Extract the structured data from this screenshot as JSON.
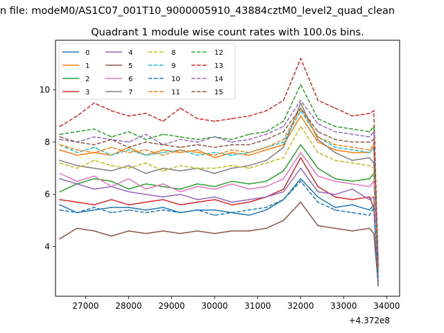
{
  "figure": {
    "suptitle": "n file: modeM0/AS1C07_001T10_9000005910_43884cztM0_level2_quad_clean"
  },
  "chart_data": {
    "type": "line",
    "title": "Quadrant 1 module wise count rates with 100.0s bins.",
    "xlabel": "",
    "ylabel": "",
    "x_offset_label": "+4.372e8",
    "xlim": [
      26300,
      34300
    ],
    "ylim": [
      2.1,
      11.9
    ],
    "xticks": [
      27000,
      28000,
      29000,
      30000,
      31000,
      32000,
      33000,
      34000
    ],
    "xtick_labels": [
      "27000",
      "28000",
      "29000",
      "30000",
      "31000",
      "32000",
      "33000",
      "34000"
    ],
    "yticks": [
      4,
      6,
      8,
      10
    ],
    "ytick_labels": [
      "4",
      "6",
      "8",
      "10"
    ],
    "grid": false,
    "legend": {
      "placement": "top-left",
      "columns": 4
    },
    "series": [
      {
        "name": "0",
        "color": "#1f77b4",
        "style": "solid",
        "x": [
          26400,
          26800,
          27200,
          27600,
          28000,
          28400,
          28800,
          29200,
          29600,
          30000,
          30400,
          30800,
          31200,
          31600,
          32000,
          32400,
          32800,
          33200,
          33600,
          33700,
          33800
        ],
        "y": [
          5.6,
          5.3,
          5.4,
          5.5,
          5.5,
          5.4,
          5.5,
          5.3,
          5.4,
          5.4,
          5.3,
          5.2,
          5.4,
          5.8,
          6.6,
          5.9,
          5.5,
          5.6,
          5.4,
          5.6,
          2.5
        ]
      },
      {
        "name": "1",
        "color": "#ff7f0e",
        "style": "solid",
        "x": [
          26400,
          26800,
          27200,
          27600,
          28000,
          28400,
          28800,
          29200,
          29600,
          30000,
          30400,
          30800,
          31200,
          31600,
          32000,
          32400,
          32800,
          33200,
          33600,
          33700,
          33800
        ],
        "y": [
          7.7,
          7.5,
          7.6,
          7.5,
          7.8,
          7.5,
          7.7,
          7.6,
          7.7,
          7.4,
          7.6,
          7.5,
          7.7,
          7.9,
          9.0,
          8.0,
          7.7,
          7.6,
          7.6,
          7.8,
          3.0
        ]
      },
      {
        "name": "2",
        "color": "#2ca02c",
        "style": "solid",
        "x": [
          26400,
          26800,
          27200,
          27600,
          28000,
          28400,
          28800,
          29200,
          29600,
          30000,
          30400,
          30800,
          31200,
          31600,
          32000,
          32400,
          32800,
          33200,
          33600,
          33700,
          33800
        ],
        "y": [
          6.1,
          6.4,
          6.6,
          6.5,
          6.2,
          6.4,
          6.3,
          6.2,
          6.4,
          6.3,
          6.5,
          6.4,
          6.5,
          6.9,
          7.9,
          7.0,
          6.6,
          6.5,
          6.6,
          6.8,
          2.8
        ]
      },
      {
        "name": "3",
        "color": "#d62728",
        "style": "solid",
        "x": [
          26400,
          26800,
          27200,
          27600,
          28000,
          28400,
          28800,
          29200,
          29600,
          30000,
          30400,
          30800,
          31200,
          31600,
          32000,
          32400,
          32800,
          33200,
          33600,
          33700,
          33800
        ],
        "y": [
          5.8,
          5.7,
          5.6,
          5.8,
          5.6,
          5.7,
          5.8,
          5.6,
          5.7,
          5.8,
          5.6,
          5.7,
          5.9,
          6.2,
          7.4,
          6.3,
          5.9,
          5.8,
          5.9,
          5.5,
          3.0
        ]
      },
      {
        "name": "4",
        "color": "#9467bd",
        "style": "solid",
        "x": [
          26400,
          26800,
          27200,
          27600,
          28000,
          28400,
          28800,
          29200,
          29600,
          30000,
          30400,
          30800,
          31200,
          31600,
          32000,
          32400,
          32800,
          33200,
          33600,
          33700,
          33800
        ],
        "y": [
          6.6,
          6.4,
          6.2,
          6.3,
          6.1,
          6.0,
          5.9,
          6.0,
          5.8,
          5.9,
          5.7,
          5.8,
          5.9,
          6.1,
          7.0,
          6.1,
          6.0,
          6.2,
          5.8,
          5.9,
          2.8
        ]
      },
      {
        "name": "5",
        "color": "#8c564b",
        "style": "solid",
        "x": [
          26400,
          26800,
          27200,
          27600,
          28000,
          28400,
          28800,
          29200,
          29600,
          30000,
          30400,
          30800,
          31200,
          31600,
          32000,
          32400,
          32800,
          33200,
          33600,
          33700,
          33800
        ],
        "y": [
          4.3,
          4.7,
          4.6,
          4.4,
          4.6,
          4.5,
          4.6,
          4.5,
          4.6,
          4.5,
          4.6,
          4.6,
          4.7,
          5.0,
          5.7,
          4.8,
          4.7,
          4.6,
          4.7,
          4.5,
          2.6
        ]
      },
      {
        "name": "6",
        "color": "#e377c2",
        "style": "solid",
        "x": [
          26400,
          26800,
          27200,
          27600,
          28000,
          28400,
          28800,
          29200,
          29600,
          30000,
          30400,
          30800,
          31200,
          31600,
          32000,
          32400,
          32800,
          33200,
          33600,
          33700,
          33800
        ],
        "y": [
          6.8,
          6.5,
          6.7,
          6.3,
          6.6,
          6.2,
          6.4,
          6.1,
          6.3,
          6.2,
          6.4,
          6.2,
          6.3,
          6.6,
          7.6,
          6.7,
          6.5,
          6.4,
          6.3,
          6.5,
          2.7
        ]
      },
      {
        "name": "7",
        "color": "#7f7f7f",
        "style": "solid",
        "x": [
          26400,
          26800,
          27200,
          27600,
          28000,
          28400,
          28800,
          29200,
          29600,
          30000,
          30400,
          30800,
          31200,
          31600,
          32000,
          32400,
          32800,
          33200,
          33600,
          33700,
          33800
        ],
        "y": [
          7.3,
          7.1,
          7.0,
          6.9,
          7.1,
          6.8,
          7.0,
          6.9,
          7.0,
          6.8,
          7.0,
          7.1,
          7.3,
          7.8,
          9.5,
          8.1,
          7.6,
          7.3,
          7.4,
          7.2,
          3.0
        ]
      },
      {
        "name": "8",
        "color": "#bcbd22",
        "style": "dashed",
        "x": [
          26400,
          26800,
          27200,
          27600,
          28000,
          28400,
          28800,
          29200,
          29600,
          30000,
          30400,
          30800,
          31200,
          31600,
          32000,
          32400,
          32800,
          33200,
          33600,
          33700,
          33800
        ],
        "y": [
          7.2,
          7.0,
          7.3,
          7.1,
          7.0,
          7.2,
          6.9,
          7.1,
          7.0,
          7.0,
          7.1,
          7.0,
          7.2,
          7.4,
          8.6,
          7.6,
          7.3,
          7.2,
          7.1,
          7.0,
          3.1
        ]
      },
      {
        "name": "9",
        "color": "#17becf",
        "style": "dashed",
        "x": [
          26400,
          26800,
          27200,
          27600,
          28000,
          28400,
          28800,
          29200,
          29600,
          30000,
          30400,
          30800,
          31200,
          31600,
          32000,
          32400,
          32800,
          33200,
          33600,
          33700,
          33800
        ],
        "y": [
          7.9,
          7.6,
          7.8,
          7.5,
          7.7,
          7.5,
          7.6,
          7.7,
          7.5,
          7.6,
          7.5,
          7.6,
          7.8,
          8.0,
          9.2,
          8.2,
          7.8,
          7.7,
          7.6,
          7.8,
          3.1
        ]
      },
      {
        "name": "10",
        "color": "#1f77b4",
        "style": "dashed",
        "x": [
          26400,
          26800,
          27200,
          27600,
          28000,
          28400,
          28800,
          29200,
          29600,
          30000,
          30400,
          30800,
          31200,
          31600,
          32000,
          32400,
          32800,
          33200,
          33600,
          33700,
          33800
        ],
        "y": [
          5.4,
          5.3,
          5.5,
          5.3,
          5.4,
          5.3,
          5.4,
          5.3,
          5.4,
          5.2,
          5.3,
          5.4,
          5.5,
          5.8,
          6.5,
          5.7,
          5.4,
          5.3,
          5.2,
          5.5,
          2.7
        ]
      },
      {
        "name": "11",
        "color": "#ff7f0e",
        "style": "dashed",
        "x": [
          26400,
          26800,
          27200,
          27600,
          28000,
          28400,
          28800,
          29200,
          29600,
          30000,
          30400,
          30800,
          31200,
          31600,
          32000,
          32400,
          32800,
          33200,
          33600,
          33700,
          33800
        ],
        "y": [
          7.9,
          7.7,
          7.6,
          7.8,
          7.6,
          7.7,
          7.5,
          7.7,
          7.6,
          7.5,
          7.7,
          7.6,
          7.8,
          8.1,
          9.3,
          8.2,
          7.9,
          7.8,
          7.7,
          7.9,
          3.2
        ]
      },
      {
        "name": "12",
        "color": "#2ca02c",
        "style": "dashed",
        "x": [
          26400,
          26800,
          27200,
          27600,
          28000,
          28400,
          28800,
          29200,
          29600,
          30000,
          30400,
          30800,
          31200,
          31600,
          32000,
          32400,
          32800,
          33200,
          33600,
          33700,
          33800
        ],
        "y": [
          8.3,
          8.4,
          8.5,
          8.2,
          8.4,
          8.1,
          8.3,
          8.2,
          8.1,
          8.2,
          8.1,
          8.3,
          8.4,
          8.8,
          10.2,
          8.9,
          8.6,
          8.5,
          8.4,
          8.6,
          3.3
        ]
      },
      {
        "name": "13",
        "color": "#d62728",
        "style": "dashed",
        "x": [
          26400,
          26800,
          27200,
          27600,
          28000,
          28400,
          28800,
          29200,
          29600,
          30000,
          30400,
          30800,
          31200,
          31600,
          32000,
          32400,
          32800,
          33200,
          33600,
          33700,
          33800
        ],
        "y": [
          8.6,
          9.0,
          9.5,
          9.2,
          9.0,
          9.1,
          8.8,
          9.3,
          8.9,
          8.8,
          8.9,
          9.0,
          9.2,
          9.6,
          11.2,
          9.6,
          9.3,
          9.0,
          9.1,
          9.2,
          3.4
        ]
      },
      {
        "name": "14",
        "color": "#9467bd",
        "style": "dashed",
        "x": [
          26400,
          26800,
          27200,
          27600,
          28000,
          28400,
          28800,
          29200,
          29600,
          30000,
          30400,
          30800,
          31200,
          31600,
          32000,
          32400,
          32800,
          33200,
          33600,
          33700,
          33800
        ],
        "y": [
          8.1,
          8.0,
          8.2,
          8.1,
          8.0,
          8.3,
          7.9,
          8.1,
          8.0,
          8.2,
          8.0,
          8.1,
          8.3,
          8.6,
          9.6,
          8.7,
          8.4,
          8.3,
          8.2,
          8.4,
          3.2
        ]
      },
      {
        "name": "15",
        "color": "#8c564b",
        "style": "dashed",
        "x": [
          26400,
          26800,
          27200,
          27600,
          28000,
          28400,
          28800,
          29200,
          29600,
          30000,
          30400,
          30800,
          31200,
          31600,
          32000,
          32400,
          32800,
          33200,
          33600,
          33700,
          33800
        ],
        "y": [
          8.2,
          8.0,
          7.9,
          8.1,
          7.8,
          8.0,
          7.9,
          7.8,
          7.9,
          7.8,
          7.9,
          7.9,
          8.1,
          8.4,
          9.3,
          8.4,
          8.1,
          8.0,
          8.0,
          8.1,
          3.2
        ]
      }
    ]
  }
}
